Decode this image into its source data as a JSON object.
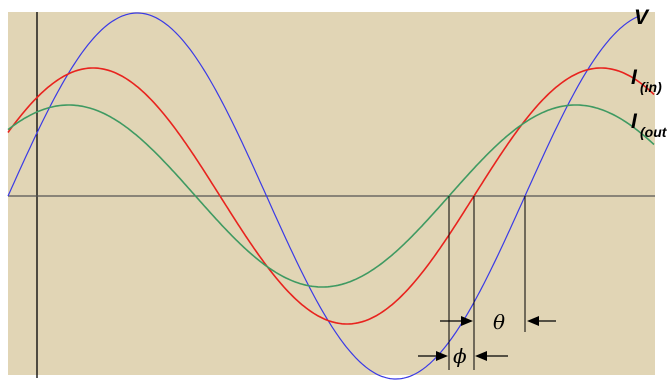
{
  "colors": {
    "background": "#e1d5b5",
    "voltage": "#3a3ae6",
    "current_in": "#e8231e",
    "current_out": "#3f9a62",
    "axis": "#000000",
    "baseline": "#555555"
  },
  "labels": {
    "v": "V",
    "i_in": "I",
    "i_in_sub": "(in)",
    "i_out": "I",
    "i_out_sub": "(out",
    "theta": "θ",
    "phi": "ϕ"
  }
}
